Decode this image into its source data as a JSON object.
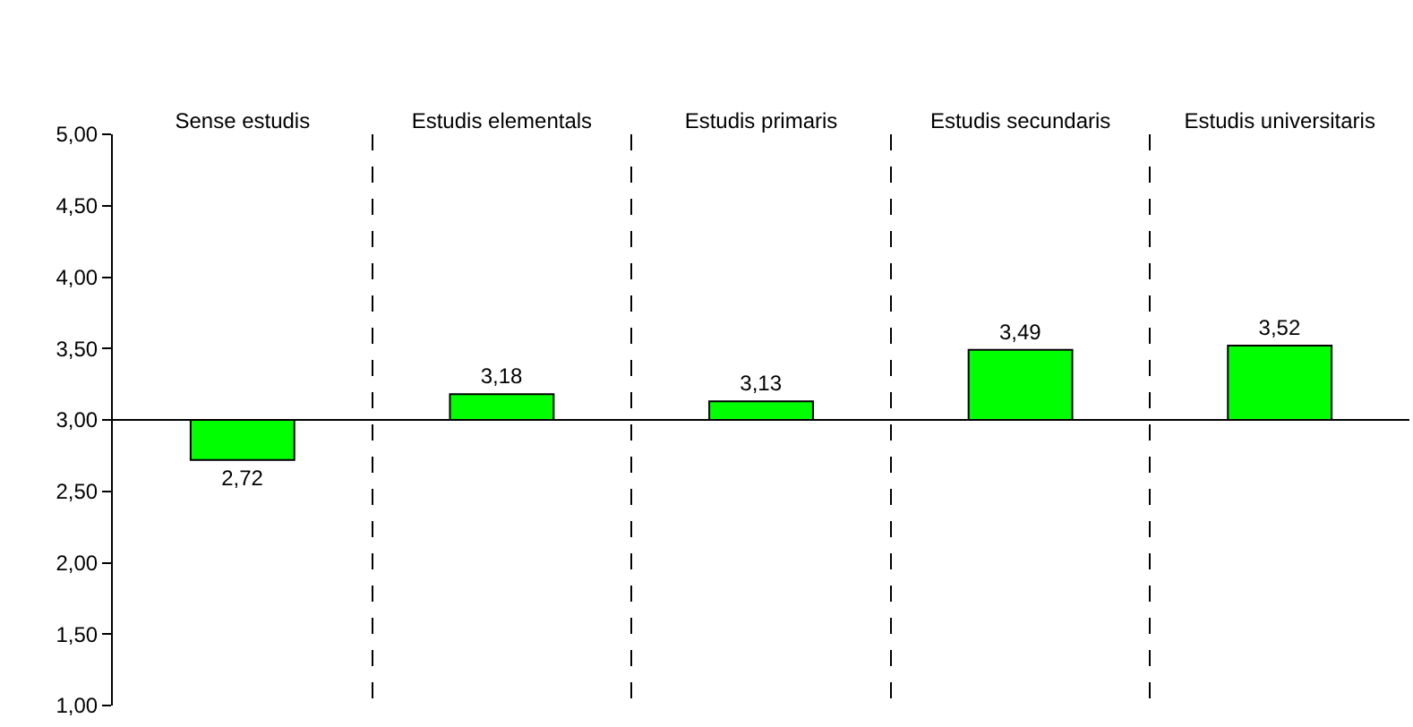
{
  "chart_data": {
    "type": "bar",
    "categories": [
      "Sense estudis",
      "Estudis elementals",
      "Estudis primaris",
      "Estudis secundaris",
      "Estudis universitaris"
    ],
    "base": [
      3,
      3,
      3,
      3,
      3
    ],
    "values": [
      -0.28,
      0.18,
      0.13,
      0.49,
      0.52
    ],
    "value_labels": [
      "2,72",
      "3,18",
      "3,13",
      "3,49",
      "3,52"
    ],
    "color": "#00ff00",
    "ylim": [
      1,
      5
    ],
    "yticks": [
      {
        "value": 1,
        "label": "1,00"
      },
      {
        "value": 1.5,
        "label": "1,50"
      },
      {
        "value": 2,
        "label": "2,00"
      },
      {
        "value": 2.5,
        "label": "2,50"
      },
      {
        "value": 3,
        "label": "3,00"
      },
      {
        "value": 3.5,
        "label": "3,50"
      },
      {
        "value": 4,
        "label": "4,00"
      },
      {
        "value": 4.5,
        "label": "4,50"
      },
      {
        "value": 5,
        "label": "5,00"
      }
    ],
    "ref_lines": [
      {
        "axis": "y",
        "value": 3,
        "color": "#000000",
        "line_style": "solid"
      }
    ],
    "grid": "x"
  }
}
